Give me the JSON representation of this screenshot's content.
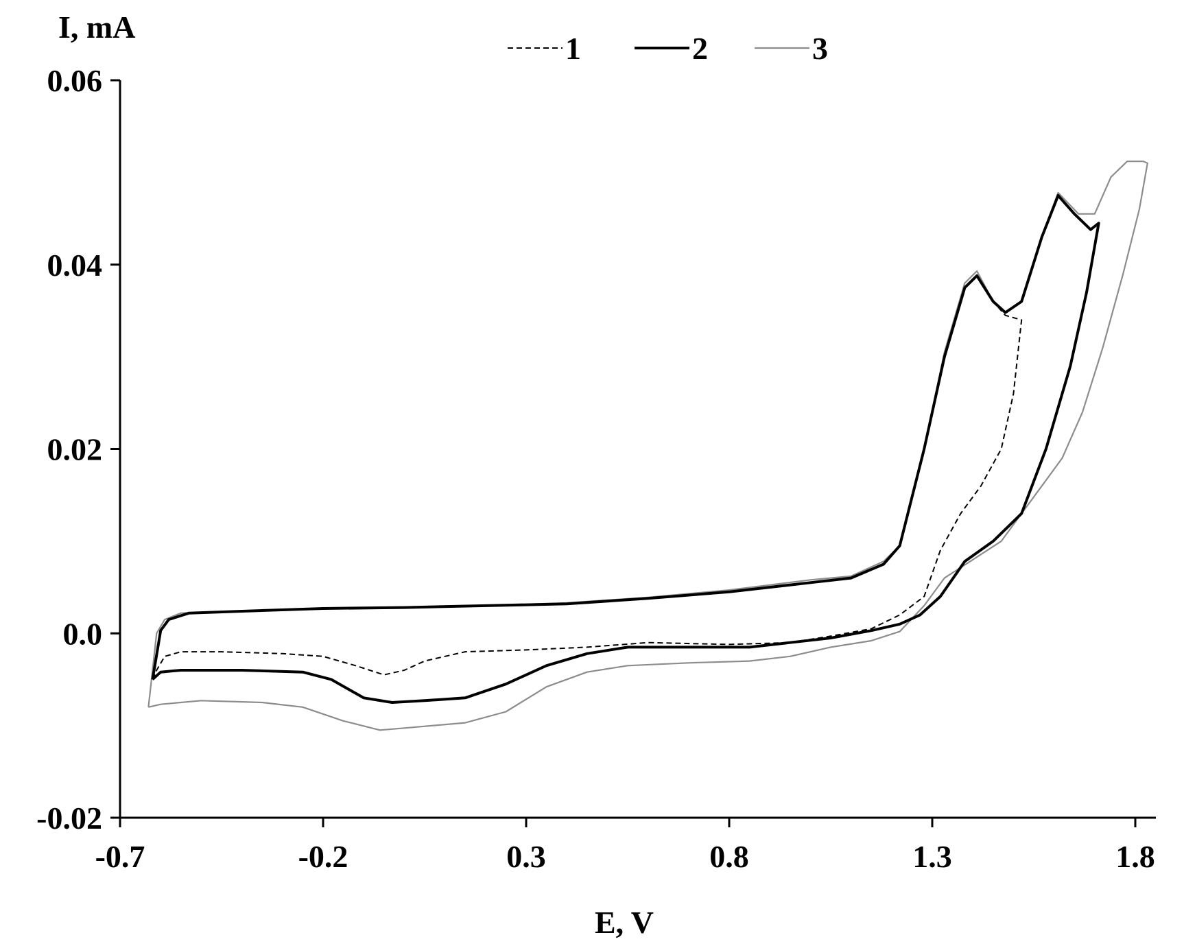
{
  "chart_data": {
    "type": "line",
    "title": "",
    "xlabel": "E, V",
    "ylabel": "I, mA",
    "xlim": [
      -0.7,
      1.85
    ],
    "ylim": [
      -0.02,
      0.06
    ],
    "x_ticks": [
      -0.7,
      -0.2,
      0.3,
      0.8,
      1.3,
      1.8
    ],
    "x_tick_labels": [
      "-0.7",
      "-0.2",
      "0.3",
      "0.8",
      "1.3",
      "1.8"
    ],
    "y_ticks": [
      -0.02,
      0.0,
      0.02,
      0.04,
      0.06
    ],
    "y_tick_labels": [
      "-0.02",
      "0.0",
      "0.02",
      "0.04",
      "0.06"
    ],
    "grid": false,
    "legend": "top-center",
    "series": [
      {
        "name": "1",
        "style": "dashed",
        "color": "#000000",
        "points": [
          [
            -0.62,
            -0.005
          ],
          [
            -0.61,
            -0.004
          ],
          [
            -0.59,
            -0.0025
          ],
          [
            -0.55,
            -0.002
          ],
          [
            -0.45,
            -0.002
          ],
          [
            -0.3,
            -0.0022
          ],
          [
            -0.2,
            -0.0025
          ],
          [
            -0.12,
            -0.0035
          ],
          [
            -0.05,
            -0.0045
          ],
          [
            0.0,
            -0.004
          ],
          [
            0.05,
            -0.003
          ],
          [
            0.15,
            -0.002
          ],
          [
            0.3,
            -0.0018
          ],
          [
            0.45,
            -0.0015
          ],
          [
            0.6,
            -0.001
          ],
          [
            0.8,
            -0.0012
          ],
          [
            0.95,
            -0.001
          ],
          [
            1.05,
            -0.0003
          ],
          [
            1.15,
            0.0005
          ],
          [
            1.22,
            0.002
          ],
          [
            1.28,
            0.004
          ],
          [
            1.32,
            0.009
          ],
          [
            1.37,
            0.013
          ],
          [
            1.42,
            0.016
          ],
          [
            1.47,
            0.02
          ],
          [
            1.5,
            0.026
          ],
          [
            1.52,
            0.034
          ],
          [
            1.48,
            0.0345
          ],
          [
            1.45,
            0.036
          ],
          [
            1.41,
            0.0388
          ],
          [
            1.38,
            0.0375
          ],
          [
            1.33,
            0.03
          ],
          [
            1.28,
            0.02
          ],
          [
            1.22,
            0.0095
          ],
          [
            1.18,
            0.0075
          ],
          [
            1.1,
            0.006
          ],
          [
            1.0,
            0.0055
          ],
          [
            0.8,
            0.0045
          ],
          [
            0.6,
            0.0038
          ],
          [
            0.4,
            0.0032
          ],
          [
            0.2,
            0.003
          ],
          [
            0.0,
            0.0028
          ],
          [
            -0.2,
            0.0027
          ],
          [
            -0.4,
            0.0024
          ],
          [
            -0.53,
            0.0022
          ],
          [
            -0.58,
            0.0015
          ],
          [
            -0.6,
            0.0003
          ],
          [
            -0.62,
            -0.005
          ]
        ]
      },
      {
        "name": "2",
        "style": "solid-bold",
        "color": "#000000",
        "points": [
          [
            -0.62,
            -0.005
          ],
          [
            -0.6,
            -0.0042
          ],
          [
            -0.55,
            -0.004
          ],
          [
            -0.4,
            -0.004
          ],
          [
            -0.25,
            -0.0042
          ],
          [
            -0.18,
            -0.005
          ],
          [
            -0.1,
            -0.007
          ],
          [
            -0.03,
            -0.0075
          ],
          [
            0.05,
            -0.0073
          ],
          [
            0.15,
            -0.007
          ],
          [
            0.25,
            -0.0055
          ],
          [
            0.35,
            -0.0035
          ],
          [
            0.45,
            -0.0022
          ],
          [
            0.55,
            -0.0015
          ],
          [
            0.7,
            -0.0015
          ],
          [
            0.85,
            -0.0015
          ],
          [
            0.95,
            -0.001
          ],
          [
            1.05,
            -0.0005
          ],
          [
            1.15,
            0.0003
          ],
          [
            1.22,
            0.001
          ],
          [
            1.27,
            0.002
          ],
          [
            1.32,
            0.004
          ],
          [
            1.38,
            0.0078
          ],
          [
            1.45,
            0.01
          ],
          [
            1.52,
            0.013
          ],
          [
            1.58,
            0.02
          ],
          [
            1.64,
            0.029
          ],
          [
            1.68,
            0.037
          ],
          [
            1.71,
            0.0445
          ],
          [
            1.69,
            0.0438
          ],
          [
            1.65,
            0.0455
          ],
          [
            1.61,
            0.0475
          ],
          [
            1.57,
            0.043
          ],
          [
            1.52,
            0.036
          ],
          [
            1.48,
            0.0348
          ],
          [
            1.45,
            0.036
          ],
          [
            1.41,
            0.0388
          ],
          [
            1.38,
            0.0375
          ],
          [
            1.33,
            0.03
          ],
          [
            1.28,
            0.02
          ],
          [
            1.22,
            0.0095
          ],
          [
            1.18,
            0.0075
          ],
          [
            1.1,
            0.006
          ],
          [
            1.0,
            0.0055
          ],
          [
            0.8,
            0.0045
          ],
          [
            0.6,
            0.0038
          ],
          [
            0.4,
            0.0032
          ],
          [
            0.2,
            0.003
          ],
          [
            0.0,
            0.0028
          ],
          [
            -0.2,
            0.0027
          ],
          [
            -0.4,
            0.0024
          ],
          [
            -0.53,
            0.0022
          ],
          [
            -0.58,
            0.0015
          ],
          [
            -0.6,
            0.0003
          ],
          [
            -0.62,
            -0.005
          ]
        ]
      },
      {
        "name": "3",
        "style": "solid-thin",
        "color": "#8c8c8c",
        "points": [
          [
            -0.63,
            -0.008
          ],
          [
            -0.6,
            -0.0077
          ],
          [
            -0.5,
            -0.0073
          ],
          [
            -0.35,
            -0.0075
          ],
          [
            -0.25,
            -0.008
          ],
          [
            -0.15,
            -0.0095
          ],
          [
            -0.06,
            -0.0105
          ],
          [
            0.02,
            -0.0102
          ],
          [
            0.15,
            -0.0097
          ],
          [
            0.25,
            -0.0085
          ],
          [
            0.35,
            -0.0058
          ],
          [
            0.45,
            -0.0042
          ],
          [
            0.55,
            -0.0035
          ],
          [
            0.7,
            -0.0032
          ],
          [
            0.85,
            -0.003
          ],
          [
            0.95,
            -0.0025
          ],
          [
            1.05,
            -0.0015
          ],
          [
            1.15,
            -0.0008
          ],
          [
            1.22,
            0.0002
          ],
          [
            1.28,
            0.003
          ],
          [
            1.33,
            0.006
          ],
          [
            1.4,
            0.008
          ],
          [
            1.47,
            0.01
          ],
          [
            1.52,
            0.013
          ],
          [
            1.57,
            0.016
          ],
          [
            1.62,
            0.019
          ],
          [
            1.67,
            0.024
          ],
          [
            1.72,
            0.031
          ],
          [
            1.77,
            0.039
          ],
          [
            1.81,
            0.046
          ],
          [
            1.83,
            0.051
          ],
          [
            1.82,
            0.0512
          ],
          [
            1.78,
            0.0512
          ],
          [
            1.74,
            0.0495
          ],
          [
            1.7,
            0.0455
          ],
          [
            1.66,
            0.0455
          ],
          [
            1.61,
            0.0478
          ],
          [
            1.57,
            0.043
          ],
          [
            1.52,
            0.036
          ],
          [
            1.48,
            0.0348
          ],
          [
            1.45,
            0.036
          ],
          [
            1.41,
            0.0393
          ],
          [
            1.38,
            0.038
          ],
          [
            1.33,
            0.0305
          ],
          [
            1.28,
            0.02
          ],
          [
            1.22,
            0.0095
          ],
          [
            1.18,
            0.0078
          ],
          [
            1.1,
            0.0062
          ],
          [
            1.0,
            0.0058
          ],
          [
            0.8,
            0.0047
          ],
          [
            0.6,
            0.0039
          ],
          [
            0.4,
            0.0033
          ],
          [
            0.2,
            0.003
          ],
          [
            0.0,
            0.0028
          ],
          [
            -0.2,
            0.0027
          ],
          [
            -0.4,
            0.0024
          ],
          [
            -0.55,
            0.0022
          ],
          [
            -0.59,
            0.0015
          ],
          [
            -0.61,
            0.0
          ],
          [
            -0.63,
            -0.008
          ]
        ]
      }
    ]
  }
}
